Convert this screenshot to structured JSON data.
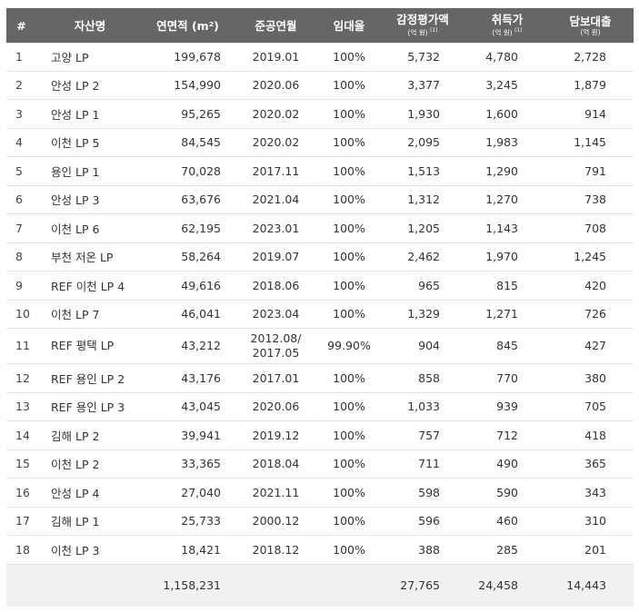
{
  "headers": {
    "no": "#",
    "name": "자산명",
    "area": "연면적 (m²)",
    "completion": "준공연월",
    "occupancy": "임대율",
    "appraisal": "감정평가액",
    "appraisal_unit": "(억 원)",
    "appraisal_note": "(1)",
    "acquisition": "취득가",
    "acquisition_unit": "(억 원)",
    "acquisition_note": "(1)",
    "loan": "담보대출",
    "loan_unit": "(억 원)"
  },
  "rows": [
    {
      "no": "1",
      "name": "고양 LP",
      "area": "199,678",
      "completion": "2019.01",
      "completion2": "",
      "occupancy": "100%",
      "appraisal": "5,732",
      "acquisition": "4,780",
      "loan": "2,728"
    },
    {
      "no": "2",
      "name": "안성 LP 2",
      "area": "154,990",
      "completion": "2020.06",
      "completion2": "",
      "occupancy": "100%",
      "appraisal": "3,377",
      "acquisition": "3,245",
      "loan": "1,879"
    },
    {
      "no": "3",
      "name": "안성 LP 1",
      "area": "95,265",
      "completion": "2020.02",
      "completion2": "",
      "occupancy": "100%",
      "appraisal": "1,930",
      "acquisition": "1,600",
      "loan": "914"
    },
    {
      "no": "4",
      "name": "이천 LP 5",
      "area": "84,545",
      "completion": "2020.02",
      "completion2": "",
      "occupancy": "100%",
      "appraisal": "2,095",
      "acquisition": "1,983",
      "loan": "1,145"
    },
    {
      "no": "5",
      "name": "용인 LP 1",
      "area": "70,028",
      "completion": "2017.11",
      "completion2": "",
      "occupancy": "100%",
      "appraisal": "1,513",
      "acquisition": "1,290",
      "loan": "791"
    },
    {
      "no": "6",
      "name": "안성 LP 3",
      "area": "63,676",
      "completion": "2021.04",
      "completion2": "",
      "occupancy": "100%",
      "appraisal": "1,312",
      "acquisition": "1,270",
      "loan": "738"
    },
    {
      "no": "7",
      "name": "이천 LP 6",
      "area": "62,195",
      "completion": "2023.01",
      "completion2": "",
      "occupancy": "100%",
      "appraisal": "1,205",
      "acquisition": "1,143",
      "loan": "708"
    },
    {
      "no": "8",
      "name": "부천 저온 LP",
      "area": "58,264",
      "completion": "2019.07",
      "completion2": "",
      "occupancy": "100%",
      "appraisal": "2,462",
      "acquisition": "1,970",
      "loan": "1,245"
    },
    {
      "no": "9",
      "name": "REF 이천 LP 4",
      "area": "49,616",
      "completion": "2018.06",
      "completion2": "",
      "occupancy": "100%",
      "appraisal": "965",
      "acquisition": "815",
      "loan": "420"
    },
    {
      "no": "10",
      "name": "이천 LP 7",
      "area": "46,041",
      "completion": "2023.04",
      "completion2": "",
      "occupancy": "100%",
      "appraisal": "1,329",
      "acquisition": "1,271",
      "loan": "726"
    },
    {
      "no": "11",
      "name": "REF 평택 LP",
      "area": "43,212",
      "completion": "2012.08/",
      "completion2": "2017.05",
      "occupancy": "99.90%",
      "appraisal": "904",
      "acquisition": "845",
      "loan": "427"
    },
    {
      "no": "12",
      "name": "REF 용인 LP 2",
      "area": "43,176",
      "completion": "2017.01",
      "completion2": "",
      "occupancy": "100%",
      "appraisal": "858",
      "acquisition": "770",
      "loan": "380"
    },
    {
      "no": "13",
      "name": "REF 용인 LP 3",
      "area": "43,045",
      "completion": "2020.06",
      "completion2": "",
      "occupancy": "100%",
      "appraisal": "1,033",
      "acquisition": "939",
      "loan": "705"
    },
    {
      "no": "14",
      "name": "김해 LP 2",
      "area": "39,941",
      "completion": "2019.12",
      "completion2": "",
      "occupancy": "100%",
      "appraisal": "757",
      "acquisition": "712",
      "loan": "418"
    },
    {
      "no": "15",
      "name": "이천 LP 2",
      "area": "33,365",
      "completion": "2018.04",
      "completion2": "",
      "occupancy": "100%",
      "appraisal": "711",
      "acquisition": "490",
      "loan": "365"
    },
    {
      "no": "16",
      "name": "안성 LP 4",
      "area": "27,040",
      "completion": "2021.11",
      "completion2": "",
      "occupancy": "100%",
      "appraisal": "598",
      "acquisition": "590",
      "loan": "343"
    },
    {
      "no": "17",
      "name": "김해 LP 1",
      "area": "25,733",
      "completion": "2000.12",
      "completion2": "",
      "occupancy": "100%",
      "appraisal": "596",
      "acquisition": "460",
      "loan": "310"
    },
    {
      "no": "18",
      "name": "이천 LP 3",
      "area": "18,421",
      "completion": "2018.12",
      "completion2": "",
      "occupancy": "100%",
      "appraisal": "388",
      "acquisition": "285",
      "loan": "201"
    }
  ],
  "totals": {
    "area": "1,158,231",
    "appraisal": "27,765",
    "acquisition": "24,458",
    "loan": "14,443"
  }
}
